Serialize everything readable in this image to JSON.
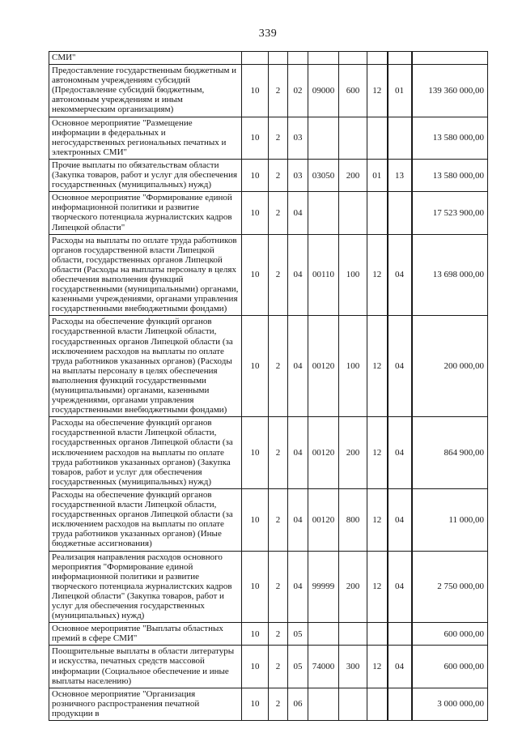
{
  "page": {
    "number": "339"
  },
  "table": {
    "rows": [
      {
        "desc": "СМИ\"",
        "codes": [
          "",
          "",
          "",
          "",
          "",
          "",
          ""
        ],
        "amount": ""
      },
      {
        "desc": "Предоставление государственным бюджетным и автономным учреждениям субсидий (Предоставление субсидий бюджетным, автономным учреждениям и иным некоммерческим организациям)",
        "codes": [
          "10",
          "2",
          "02",
          "09000",
          "600",
          "12",
          "01"
        ],
        "amount": "139 360 000,00"
      },
      {
        "desc": "Основное мероприятие \"Размещение информации в федеральных и негосударственных региональных печатных и электронных СМИ\"",
        "codes": [
          "10",
          "2",
          "03",
          "",
          "",
          "",
          ""
        ],
        "amount": "13 580 000,00"
      },
      {
        "desc": "Прочие выплаты по обязательствам области (Закупка товаров, работ и услуг для обеспечения государственных (муниципальных) нужд)",
        "codes": [
          "10",
          "2",
          "03",
          "03050",
          "200",
          "01",
          "13"
        ],
        "amount": "13 580 000,00"
      },
      {
        "desc": "Основное мероприятие \"Формирование единой информационной политики и развитие творческого потенциала журналистских кадров Липецкой области\"",
        "codes": [
          "10",
          "2",
          "04",
          "",
          "",
          "",
          ""
        ],
        "amount": "17 523 900,00"
      },
      {
        "desc": "Расходы на выплаты по оплате труда работников органов государственной власти Липецкой области, государственных органов Липецкой области (Расходы на выплаты персоналу в целях обеспечения выполнения функций государственными (муниципальными) органами, казенными учреждениями, органами управления государственными внебюджетными фондами)",
        "codes": [
          "10",
          "2",
          "04",
          "00110",
          "100",
          "12",
          "04"
        ],
        "amount": "13 698 000,00"
      },
      {
        "desc": "Расходы на обеспечение функций органов государственной власти Липецкой области, государственных органов Липецкой области (за исключением расходов на выплаты по оплате труда работников указанных органов) (Расходы на выплаты персоналу в целях обеспечения выполнения функций государственными (муниципальными) органами, казенными учреждениями, органами управления государственными внебюджетными фондами)",
        "codes": [
          "10",
          "2",
          "04",
          "00120",
          "100",
          "12",
          "04"
        ],
        "amount": "200 000,00"
      },
      {
        "desc": "Расходы на обеспечение функций органов государственной власти Липецкой области, государственных органов Липецкой области (за исключением расходов на выплаты по оплате труда работников указанных органов) (Закупка товаров, работ и услуг для обеспечения государственных (муниципальных) нужд)",
        "codes": [
          "10",
          "2",
          "04",
          "00120",
          "200",
          "12",
          "04"
        ],
        "amount": "864 900,00"
      },
      {
        "desc": "Расходы на обеспечение функций органов государственной власти Липецкой области, государственных органов Липецкой области (за исключением расходов на выплаты по оплате труда работников указанных органов) (Иные бюджетные ассигнования)",
        "codes": [
          "10",
          "2",
          "04",
          "00120",
          "800",
          "12",
          "04"
        ],
        "amount": "11 000,00"
      },
      {
        "desc": "Реализация направления расходов основного мероприятия \"Формирование единой информационной политики и развитие творческого потенциала журналистских кадров Липецкой области\" (Закупка товаров, работ и услуг для обеспечения государственных (муниципальных) нужд)",
        "codes": [
          "10",
          "2",
          "04",
          "99999",
          "200",
          "12",
          "04"
        ],
        "amount": "2 750 000,00"
      },
      {
        "desc": "Основное мероприятие \"Выплаты областных премий в сфере СМИ\"",
        "codes": [
          "10",
          "2",
          "05",
          "",
          "",
          "",
          ""
        ],
        "amount": "600 000,00"
      },
      {
        "desc": "Поощрительные выплаты в области литературы и искусства, печатных средств массовой информации (Социальное обеспечение и иные выплаты населению)",
        "codes": [
          "10",
          "2",
          "05",
          "74000",
          "300",
          "12",
          "04"
        ],
        "amount": "600 000,00"
      },
      {
        "desc": "Основное мероприятие \"Организация розничного распространения печатной продукции в",
        "codes": [
          "10",
          "2",
          "06",
          "",
          "",
          "",
          ""
        ],
        "amount": "3 000 000,00"
      }
    ]
  }
}
